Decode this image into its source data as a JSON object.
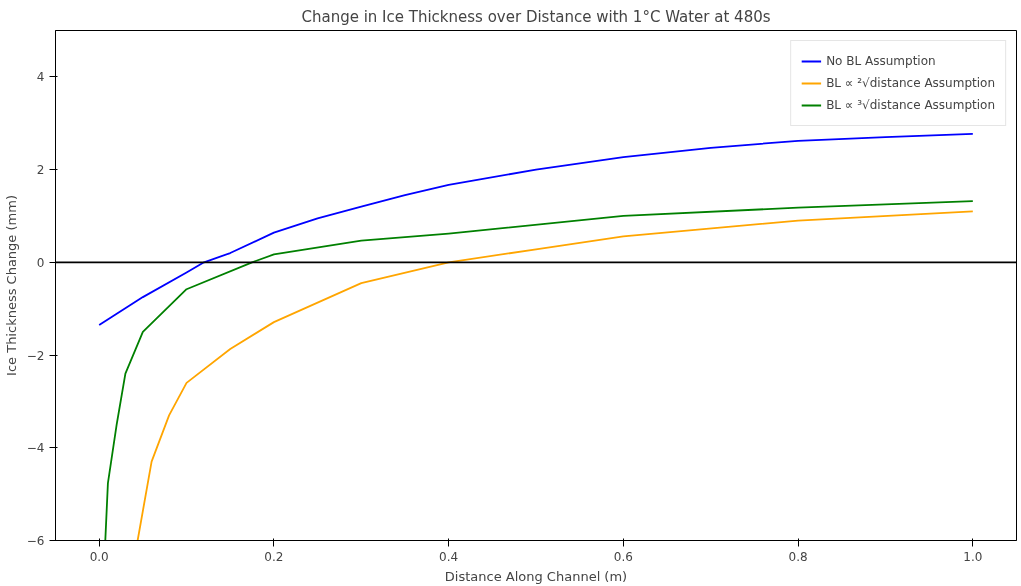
{
  "chart_data": {
    "type": "line",
    "title": "Change in Ice Thickness over Distance with 1°C Water at 480s",
    "xlabel": "Distance Along Channel (m)",
    "ylabel": "Ice Thickness Change (mm)",
    "xlim": [
      -0.05,
      1.05
    ],
    "ylim": [
      -6,
      5
    ],
    "xticks": [
      {
        "value": 0,
        "label": "0.0"
      },
      0.2,
      0.4,
      0.6,
      0.8,
      {
        "value": 1,
        "label": "1.0"
      }
    ],
    "yticks": [
      -6,
      -4,
      -2,
      0,
      2,
      4
    ],
    "grid": false,
    "legend": "top right",
    "line_style": "solid",
    "ref_lines": [
      {
        "axis": "y",
        "value": 0,
        "color": "#000000"
      }
    ],
    "series": [
      {
        "name": "No BL Assumption",
        "color": "#0000ff",
        "x": [
          0,
          0.05,
          0.1,
          0.12,
          0.15,
          0.2,
          0.25,
          0.3,
          0.35,
          0.4,
          0.5,
          0.6,
          0.7,
          0.8,
          0.9,
          1.0
        ],
        "values": [
          -1.35,
          -0.75,
          -0.22,
          0,
          0.2,
          0.64,
          0.95,
          1.2,
          1.45,
          1.67,
          2.0,
          2.27,
          2.47,
          2.62,
          2.7,
          2.77
        ]
      },
      {
        "name": "BL ∝ ²√distance Assumption",
        "color": "#ffa500",
        "x": [
          0.044,
          0.06,
          0.08,
          0.1,
          0.15,
          0.2,
          0.3,
          0.4,
          0.5,
          0.6,
          0.8,
          1.0
        ],
        "values": [
          -6,
          -4.3,
          -3.3,
          -2.6,
          -1.87,
          -1.29,
          -0.45,
          0,
          0.28,
          0.56,
          0.9,
          1.1
        ]
      },
      {
        "name": "BL ∝ ³√distance Assumption",
        "color": "#008000",
        "x": [
          0.007,
          0.01,
          0.02,
          0.03,
          0.05,
          0.1,
          0.175,
          0.2,
          0.3,
          0.4,
          0.6,
          0.8,
          1.0
        ],
        "values": [
          -6,
          -4.76,
          -3.5,
          -2.4,
          -1.5,
          -0.58,
          0,
          0.17,
          0.47,
          0.62,
          1.0,
          1.18,
          1.32
        ]
      }
    ]
  }
}
